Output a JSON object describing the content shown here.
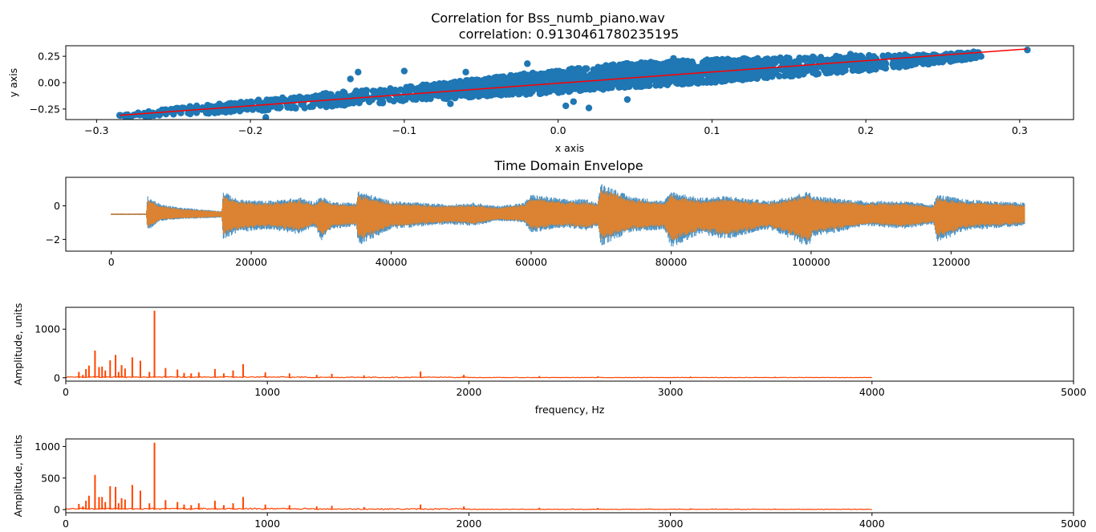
{
  "figure": {
    "title_line1": "Correlation for Bss_numb_piano.wav",
    "title_line2": "correlation: 0.9130461780235195"
  },
  "chart_data": [
    {
      "type": "scatter",
      "title": "Correlation for Bss_numb_piano.wav correlation: 0.9130461780235195",
      "xlabel": "x axis",
      "ylabel": "y axis",
      "xlim": [
        -0.32,
        0.335
      ],
      "ylim": [
        -0.35,
        0.35
      ],
      "xticks": [
        -0.3,
        -0.2,
        -0.1,
        0.0,
        0.1,
        0.2,
        0.3
      ],
      "xtick_labels": [
        "−0.3",
        "−0.2",
        "−0.1",
        "0.0",
        "0.1",
        "0.2",
        "0.3"
      ],
      "yticks": [
        -0.25,
        0.0,
        0.25
      ],
      "ytick_labels": [
        "−0.25",
        "0.00",
        "0.25"
      ],
      "point_color": "#1f77b4",
      "trend_line": {
        "color": "#ff0000",
        "x": [
          -0.285,
          0.305
        ],
        "y": [
          -0.31,
          0.32
        ]
      },
      "points": [
        {
          "x": -0.285,
          "y": -0.31
        },
        {
          "x": 0.305,
          "y": 0.31
        },
        {
          "x": -0.13,
          "y": 0.1
        },
        {
          "x": -0.135,
          "y": 0.035
        },
        {
          "x": 0.075,
          "y": 0.23
        },
        {
          "x": 0.005,
          "y": -0.22
        },
        {
          "x": 0.02,
          "y": -0.24
        },
        {
          "x": 0.01,
          "y": -0.18
        },
        {
          "x": 0.045,
          "y": -0.16
        },
        {
          "x": -0.1,
          "y": 0.11
        },
        {
          "x": -0.06,
          "y": 0.1
        },
        {
          "x": 0.27,
          "y": 0.28
        },
        {
          "x": 0.255,
          "y": 0.27
        },
        {
          "x": -0.25,
          "y": -0.3
        },
        {
          "x": -0.19,
          "y": -0.33
        },
        {
          "x": 0.19,
          "y": 0.27
        },
        {
          "x": -0.07,
          "y": -0.2
        },
        {
          "x": 0.09,
          "y": 0.0
        },
        {
          "x": 0.12,
          "y": 0.2
        },
        {
          "x": -0.02,
          "y": 0.18
        }
      ],
      "cloud": {
        "x": [
          -0.285,
          -0.25,
          -0.2,
          -0.15,
          -0.1,
          -0.05,
          0.0,
          0.05,
          0.1,
          0.15,
          0.2,
          0.25,
          0.275
        ],
        "y_low": [
          -0.33,
          -0.31,
          -0.27,
          -0.23,
          -0.18,
          -0.13,
          -0.1,
          -0.04,
          0.0,
          0.06,
          0.11,
          0.19,
          0.24
        ],
        "y_high": [
          -0.29,
          -0.24,
          -0.17,
          -0.1,
          -0.04,
          0.04,
          0.12,
          0.19,
          0.22,
          0.24,
          0.26,
          0.27,
          0.3
        ]
      }
    },
    {
      "type": "line",
      "title": "Time Domain Envelope",
      "xlabel": "",
      "ylabel": "",
      "xlim": [
        -6500,
        137500
      ],
      "ylim": [
        -2.7,
        1.7
      ],
      "xticks": [
        0,
        20000,
        40000,
        60000,
        80000,
        100000,
        120000
      ],
      "xtick_labels": [
        "0",
        "20000",
        "40000",
        "60000",
        "80000",
        "100000",
        "120000"
      ],
      "yticks": [
        -2,
        0
      ],
      "ytick_labels": [
        "−2",
        "0"
      ],
      "n_samples": 131000,
      "baseline": -0.5,
      "series": [
        {
          "color": "#1f77b4",
          "alpha": 0.8
        },
        {
          "color": "#ff7f0e",
          "alpha": 0.8
        }
      ],
      "envelope": {
        "x": [
          0,
          5000,
          5200,
          7000,
          10000,
          15800,
          16000,
          18000,
          22000,
          27000,
          29000,
          30000,
          31500,
          35000,
          35300,
          40000,
          48000,
          52000,
          55000,
          59000,
          60000,
          65000,
          68000,
          69500,
          70000,
          74000,
          79000,
          80000,
          84000,
          88000,
          94000,
          99800,
          100200,
          108000,
          113000,
          117500,
          118000,
          122000,
          130500
        ],
        "upper": [
          -0.45,
          -0.45,
          0.6,
          0.1,
          -0.1,
          -0.3,
          0.9,
          0.4,
          0.3,
          0.5,
          0.25,
          0.6,
          0.25,
          0.2,
          0.9,
          0.3,
          0.1,
          0.2,
          0.0,
          0.2,
          0.7,
          0.4,
          0.4,
          0.2,
          1.4,
          0.6,
          0.3,
          0.9,
          0.5,
          0.6,
          0.3,
          0.9,
          0.6,
          0.3,
          0.3,
          0.1,
          0.7,
          0.4,
          0.2
        ],
        "lower": [
          -0.55,
          -0.55,
          -1.5,
          -0.9,
          -0.8,
          -0.7,
          -2.0,
          -1.6,
          -1.4,
          -1.7,
          -1.2,
          -2.1,
          -1.4,
          -1.2,
          -2.4,
          -1.4,
          -1.1,
          -1.2,
          -0.9,
          -1.0,
          -1.6,
          -1.3,
          -1.5,
          -1.2,
          -2.4,
          -1.6,
          -1.4,
          -2.5,
          -1.7,
          -2.0,
          -1.4,
          -2.5,
          -1.9,
          -1.2,
          -1.4,
          -1.1,
          -2.2,
          -1.5,
          -1.2
        ]
      }
    },
    {
      "type": "line",
      "title": "",
      "xlabel": "frequency, Hz",
      "ylabel": "Amplitude, units",
      "xlim": [
        0,
        5000
      ],
      "ylim": [
        -70,
        1450
      ],
      "xticks": [
        0,
        1000,
        2000,
        3000,
        4000,
        5000
      ],
      "xtick_labels": [
        "0",
        "1000",
        "2000",
        "3000",
        "4000",
        "5000"
      ],
      "yticks": [
        0,
        1000
      ],
      "ytick_labels": [
        "0",
        "1000"
      ],
      "color": "#ff4500",
      "x_end": 4000,
      "peaks": [
        {
          "x": 65,
          "y": 120
        },
        {
          "x": 85,
          "y": 60
        },
        {
          "x": 100,
          "y": 180
        },
        {
          "x": 115,
          "y": 250
        },
        {
          "x": 145,
          "y": 560
        },
        {
          "x": 165,
          "y": 220
        },
        {
          "x": 180,
          "y": 230
        },
        {
          "x": 196,
          "y": 150
        },
        {
          "x": 220,
          "y": 360
        },
        {
          "x": 247,
          "y": 470
        },
        {
          "x": 262,
          "y": 120
        },
        {
          "x": 277,
          "y": 260
        },
        {
          "x": 294,
          "y": 190
        },
        {
          "x": 330,
          "y": 420
        },
        {
          "x": 370,
          "y": 350
        },
        {
          "x": 415,
          "y": 120
        },
        {
          "x": 440,
          "y": 1380
        },
        {
          "x": 495,
          "y": 200
        },
        {
          "x": 554,
          "y": 170
        },
        {
          "x": 587,
          "y": 100
        },
        {
          "x": 622,
          "y": 90
        },
        {
          "x": 660,
          "y": 110
        },
        {
          "x": 740,
          "y": 180
        },
        {
          "x": 784,
          "y": 90
        },
        {
          "x": 830,
          "y": 150
        },
        {
          "x": 880,
          "y": 280
        },
        {
          "x": 990,
          "y": 110
        },
        {
          "x": 1110,
          "y": 90
        },
        {
          "x": 1245,
          "y": 60
        },
        {
          "x": 1320,
          "y": 80
        },
        {
          "x": 1480,
          "y": 50
        },
        {
          "x": 1760,
          "y": 130
        },
        {
          "x": 1975,
          "y": 60
        },
        {
          "x": 2350,
          "y": 35
        },
        {
          "x": 2640,
          "y": 30
        },
        {
          "x": 3100,
          "y": 25
        },
        {
          "x": 3520,
          "y": 20
        }
      ]
    },
    {
      "type": "line",
      "title": "",
      "xlabel": "",
      "ylabel": "Amplitude, units",
      "xlim": [
        0,
        5000
      ],
      "ylim": [
        -50,
        1120
      ],
      "xticks": [
        0,
        1000,
        2000,
        3000,
        4000,
        5000
      ],
      "xtick_labels": [
        "0",
        "1000",
        "2000",
        "3000",
        "4000",
        "5000"
      ],
      "yticks": [
        0,
        500,
        1000
      ],
      "ytick_labels": [
        "0",
        "500",
        "1000"
      ],
      "color": "#ff4500",
      "x_end": 4000,
      "peaks": [
        {
          "x": 65,
          "y": 90
        },
        {
          "x": 85,
          "y": 50
        },
        {
          "x": 100,
          "y": 140
        },
        {
          "x": 115,
          "y": 220
        },
        {
          "x": 145,
          "y": 550
        },
        {
          "x": 165,
          "y": 200
        },
        {
          "x": 180,
          "y": 200
        },
        {
          "x": 196,
          "y": 120
        },
        {
          "x": 220,
          "y": 370
        },
        {
          "x": 247,
          "y": 360
        },
        {
          "x": 262,
          "y": 100
        },
        {
          "x": 277,
          "y": 180
        },
        {
          "x": 294,
          "y": 160
        },
        {
          "x": 330,
          "y": 390
        },
        {
          "x": 370,
          "y": 300
        },
        {
          "x": 415,
          "y": 100
        },
        {
          "x": 440,
          "y": 1060
        },
        {
          "x": 495,
          "y": 150
        },
        {
          "x": 554,
          "y": 120
        },
        {
          "x": 587,
          "y": 80
        },
        {
          "x": 622,
          "y": 70
        },
        {
          "x": 660,
          "y": 100
        },
        {
          "x": 740,
          "y": 140
        },
        {
          "x": 784,
          "y": 70
        },
        {
          "x": 830,
          "y": 100
        },
        {
          "x": 880,
          "y": 200
        },
        {
          "x": 990,
          "y": 80
        },
        {
          "x": 1110,
          "y": 70
        },
        {
          "x": 1245,
          "y": 50
        },
        {
          "x": 1320,
          "y": 60
        },
        {
          "x": 1480,
          "y": 40
        },
        {
          "x": 1760,
          "y": 80
        },
        {
          "x": 1975,
          "y": 50
        },
        {
          "x": 2350,
          "y": 30
        },
        {
          "x": 2640,
          "y": 25
        },
        {
          "x": 3100,
          "y": 20
        },
        {
          "x": 3520,
          "y": 15
        }
      ]
    }
  ]
}
